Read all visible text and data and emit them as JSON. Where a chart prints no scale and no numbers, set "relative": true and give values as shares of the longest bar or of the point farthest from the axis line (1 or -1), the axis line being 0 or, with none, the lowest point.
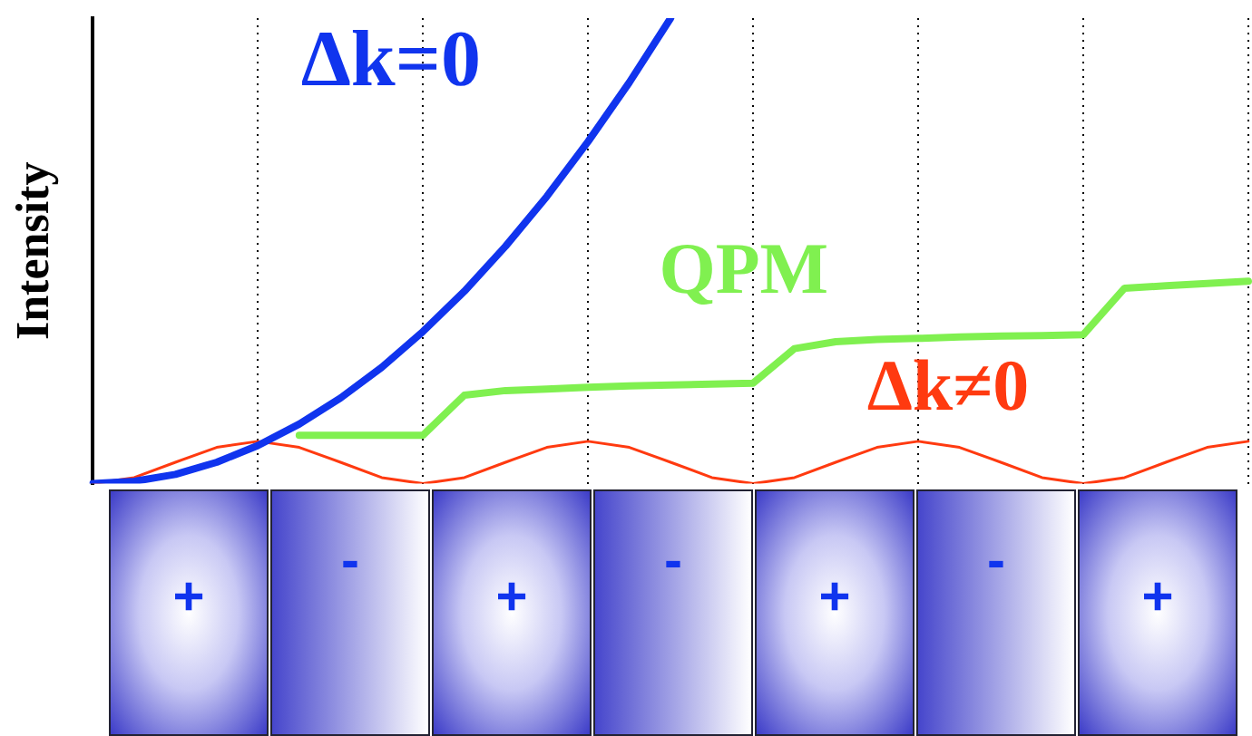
{
  "chart_data": {
    "type": "line",
    "relative": true,
    "ylabel": "Intensity",
    "categories": [
      null,
      null,
      null,
      null,
      null,
      null,
      null,
      null,
      null,
      null,
      null,
      null,
      null,
      null,
      null,
      null,
      null,
      null,
      null,
      null,
      null,
      null,
      null,
      null,
      null,
      null,
      null,
      null,
      null
    ],
    "grid": "x",
    "legend": false,
    "marker": "none",
    "series": [
      {
        "name": "Δk=0",
        "color": "#1034ee",
        "values": [
          0,
          0.005,
          0.02,
          0.046,
          0.082,
          0.128,
          0.184,
          0.25,
          0.327,
          0.413,
          0.51,
          0.617,
          0.735,
          0.862,
          1,
          null,
          null,
          null,
          null,
          null,
          null,
          null,
          null,
          null,
          null,
          null,
          null,
          null,
          null
        ]
      },
      {
        "name": "QPM",
        "color": "#80f050",
        "values": [
          null,
          null,
          null,
          null,
          null,
          0.104,
          0.104,
          0.104,
          0.104,
          0.19,
          0.2,
          0.203,
          0.207,
          0.21,
          0.212,
          0.214,
          0.216,
          0.29,
          0.305,
          0.31,
          0.312,
          0.315,
          0.317,
          0.318,
          0.32,
          0.42,
          0.425,
          0.43,
          0.435
        ]
      },
      {
        "name": "Δk≠0",
        "color": "#ff3a10",
        "values": [
          0,
          0.013,
          0.046,
          0.078,
          0.091,
          0.078,
          0.046,
          0.013,
          0,
          0.013,
          0.046,
          0.078,
          0.091,
          0.078,
          0.046,
          0.013,
          0,
          0.013,
          0.046,
          0.078,
          0.091,
          0.078,
          0.046,
          0.013,
          0,
          0.013,
          0.046,
          0.078,
          0.091
        ]
      }
    ],
    "annotations": [
      "+",
      "-",
      "+",
      "-",
      "+",
      "-",
      "+"
    ]
  }
}
